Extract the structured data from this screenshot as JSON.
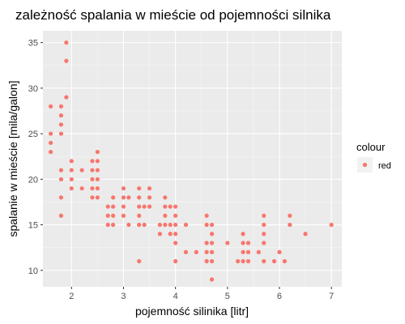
{
  "chart_data": {
    "type": "scatter",
    "title": "zależność spalania w mieście od pojemności silnika",
    "xlabel": "pojemność silinika [litr]",
    "ylabel": "spalanie w mieście [mila/galon]",
    "xlim": [
      1.45,
      7.2
    ],
    "ylim": [
      8.2,
      36.3
    ],
    "x_ticks": [
      2,
      3,
      4,
      5,
      6,
      7
    ],
    "y_ticks": [
      10,
      15,
      20,
      25,
      30,
      35
    ],
    "grid": true,
    "legend": {
      "title": "colour",
      "placement": "right",
      "entries": [
        {
          "label": "red",
          "color": "#f8766d"
        }
      ]
    },
    "point_color": "#f8766d",
    "panel_background": "#ebebeb",
    "series": [
      {
        "points": [
          [
            1.6,
            28
          ],
          [
            1.6,
            25
          ],
          [
            1.6,
            24
          ],
          [
            1.6,
            23
          ],
          [
            1.8,
            28
          ],
          [
            1.8,
            27
          ],
          [
            1.8,
            26
          ],
          [
            1.8,
            25
          ],
          [
            1.8,
            21
          ],
          [
            1.8,
            20
          ],
          [
            1.8,
            18
          ],
          [
            1.8,
            16
          ],
          [
            1.9,
            35
          ],
          [
            1.9,
            33
          ],
          [
            1.9,
            29
          ],
          [
            2.0,
            22
          ],
          [
            2.0,
            21
          ],
          [
            2.0,
            20
          ],
          [
            2.0,
            19
          ],
          [
            2.2,
            21
          ],
          [
            2.2,
            19
          ],
          [
            2.4,
            22
          ],
          [
            2.4,
            21
          ],
          [
            2.4,
            20
          ],
          [
            2.4,
            19
          ],
          [
            2.4,
            18
          ],
          [
            2.5,
            23
          ],
          [
            2.5,
            22
          ],
          [
            2.5,
            21
          ],
          [
            2.5,
            20
          ],
          [
            2.5,
            19
          ],
          [
            2.5,
            18
          ],
          [
            2.7,
            17
          ],
          [
            2.7,
            16
          ],
          [
            2.7,
            15
          ],
          [
            2.8,
            18
          ],
          [
            2.8,
            17
          ],
          [
            2.8,
            16
          ],
          [
            2.8,
            15
          ],
          [
            3.0,
            19
          ],
          [
            3.0,
            18
          ],
          [
            3.0,
            17
          ],
          [
            3.0,
            16
          ],
          [
            3.1,
            18
          ],
          [
            3.1,
            15
          ],
          [
            3.3,
            19
          ],
          [
            3.3,
            18
          ],
          [
            3.3,
            17
          ],
          [
            3.3,
            16
          ],
          [
            3.3,
            15
          ],
          [
            3.3,
            11
          ],
          [
            3.4,
            17
          ],
          [
            3.4,
            15
          ],
          [
            3.5,
            19
          ],
          [
            3.5,
            18
          ],
          [
            3.5,
            17
          ],
          [
            3.7,
            15
          ],
          [
            3.7,
            14
          ],
          [
            3.8,
            18
          ],
          [
            3.8,
            17
          ],
          [
            3.8,
            16
          ],
          [
            3.8,
            15
          ],
          [
            3.9,
            17
          ],
          [
            3.9,
            15
          ],
          [
            3.9,
            14
          ],
          [
            4.0,
            17
          ],
          [
            4.0,
            16
          ],
          [
            4.0,
            15
          ],
          [
            4.0,
            14
          ],
          [
            4.0,
            13
          ],
          [
            4.0,
            11
          ],
          [
            4.2,
            15
          ],
          [
            4.2,
            12
          ],
          [
            4.4,
            12
          ],
          [
            4.6,
            16
          ],
          [
            4.6,
            15
          ],
          [
            4.6,
            13
          ],
          [
            4.6,
            12
          ],
          [
            4.6,
            11
          ],
          [
            4.7,
            15
          ],
          [
            4.7,
            14
          ],
          [
            4.7,
            13
          ],
          [
            4.7,
            12
          ],
          [
            4.7,
            11
          ],
          [
            4.7,
            9
          ],
          [
            5.0,
            13
          ],
          [
            5.2,
            11
          ],
          [
            5.3,
            14
          ],
          [
            5.3,
            13
          ],
          [
            5.3,
            12
          ],
          [
            5.3,
            11
          ],
          [
            5.4,
            13
          ],
          [
            5.4,
            12
          ],
          [
            5.4,
            11
          ],
          [
            5.6,
            12
          ],
          [
            5.7,
            16
          ],
          [
            5.7,
            15
          ],
          [
            5.7,
            14
          ],
          [
            5.7,
            13
          ],
          [
            5.7,
            11
          ],
          [
            5.9,
            11
          ],
          [
            6.0,
            12
          ],
          [
            6.1,
            11
          ],
          [
            6.2,
            16
          ],
          [
            6.2,
            15
          ],
          [
            6.5,
            14
          ],
          [
            7.0,
            15
          ]
        ]
      }
    ]
  }
}
